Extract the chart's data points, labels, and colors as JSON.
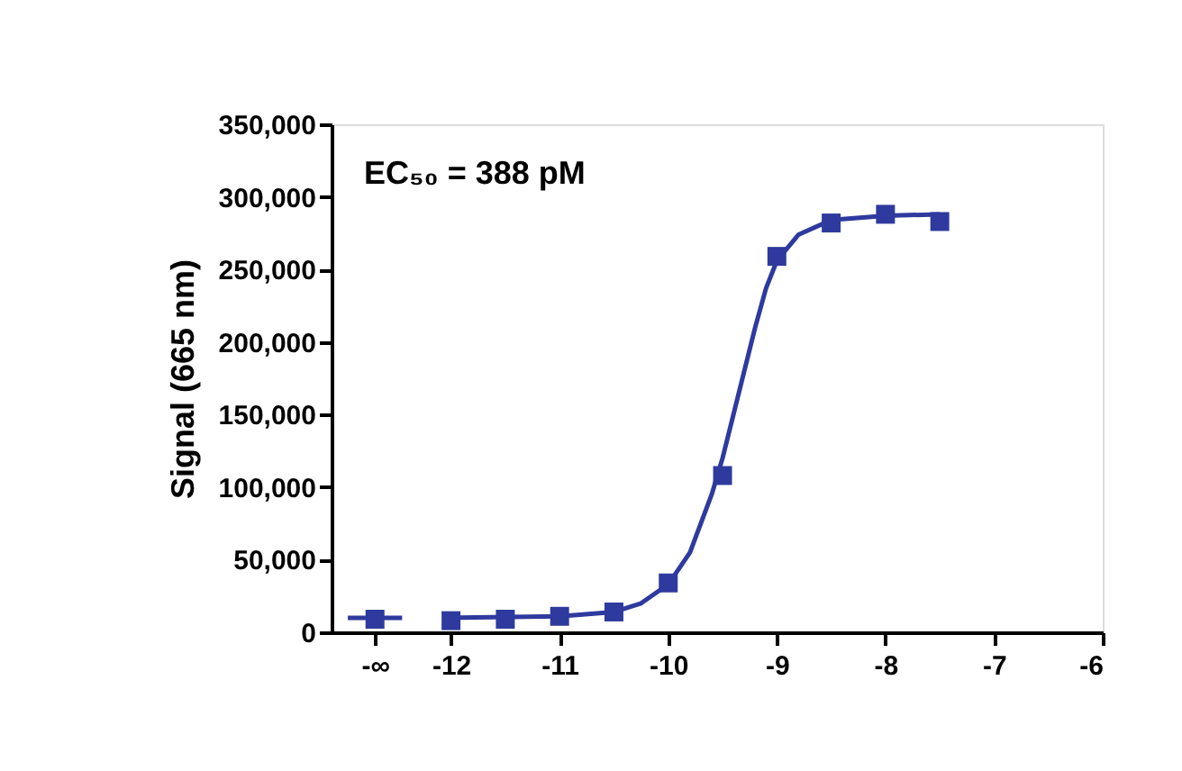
{
  "chart_data": {
    "type": "scatter",
    "ylabel": "Signal (665 nm)",
    "annotations": [
      "EC₅₀ = 388 pM"
    ],
    "xlim": [
      -13.1,
      -6
    ],
    "xticks": [
      {
        "value": -12.7,
        "label": "-∞"
      },
      {
        "value": -12,
        "label": "-12"
      },
      {
        "value": -11,
        "label": "-11"
      },
      {
        "value": -10,
        "label": "-10"
      },
      {
        "value": -9,
        "label": "-9"
      },
      {
        "value": -8,
        "label": "-8"
      },
      {
        "value": -7,
        "label": "-7"
      },
      {
        "value": -6,
        "label": "-6"
      }
    ],
    "ylim": [
      0,
      350000
    ],
    "yticks": [
      0,
      {
        "value": 50000,
        "label": "50,000"
      },
      {
        "value": 100000,
        "label": "100,000"
      },
      {
        "value": 150000,
        "label": "150,000"
      },
      {
        "value": 200000,
        "label": "200,000"
      },
      {
        "value": 250000,
        "label": "250,000"
      },
      {
        "value": 300000,
        "label": "300,000"
      },
      {
        "value": 350000,
        "label": "350,000"
      }
    ],
    "grid": false,
    "legend": false,
    "marker": "square",
    "series": [
      {
        "color": "#2e3a9e",
        "x": [
          -12.7,
          -12,
          -11.5,
          -11,
          -10.5,
          -10,
          -9.5,
          -9,
          -8.5,
          -8,
          -7.5
        ],
        "values": [
          9000,
          8000,
          9000,
          11000,
          14000,
          34000,
          108000,
          259000,
          282000,
          288000,
          283000
        ]
      },
      {
        "type": "line",
        "color": "#2e3a9e",
        "marker": "none",
        "x": [
          -12.95,
          -12.45
        ],
        "values": [
          10000,
          10000
        ]
      },
      {
        "type": "line",
        "color": "#2e3a9e",
        "marker": "none",
        "x": [
          -12,
          -11,
          -10.5,
          -10.25,
          -10,
          -9.8,
          -9.6,
          -9.5,
          -9.4,
          -9.3,
          -9.2,
          -9.1,
          -9,
          -8.8,
          -8.5,
          -8,
          -7.5
        ],
        "values": [
          10000,
          11000,
          14000,
          20000,
          33000,
          55000,
          95000,
          120000,
          150000,
          180000,
          210000,
          237000,
          256000,
          274000,
          284000,
          287000,
          288000
        ]
      }
    ]
  }
}
